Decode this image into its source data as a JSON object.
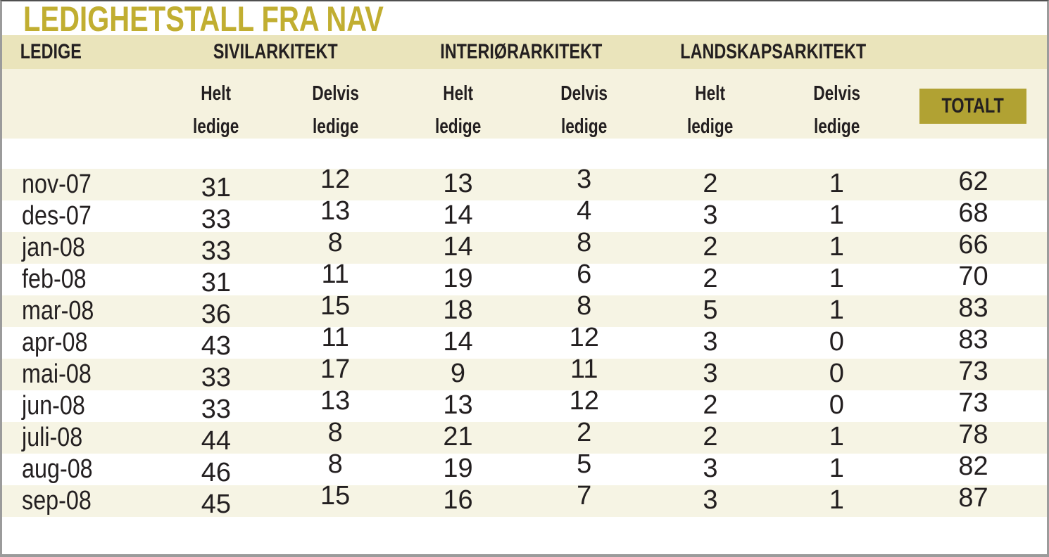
{
  "title": "LEDIGHETSTALL FRA NAV",
  "header": {
    "corner_label": "LEDIGE",
    "groups": [
      {
        "label": "SIVILARKITEKT"
      },
      {
        "label": "INTERIØRARKITEKT"
      },
      {
        "label": "LANDSKAPSARKITEKT"
      }
    ],
    "subcols": [
      {
        "line1": "Helt",
        "line2": "ledige"
      },
      {
        "line1": "Delvis",
        "line2": "ledige"
      },
      {
        "line1": "Helt",
        "line2": "ledige"
      },
      {
        "line1": "Delvis",
        "line2": "ledige"
      },
      {
        "line1": "Helt",
        "line2": "ledige"
      },
      {
        "line1": "Delvis",
        "line2": "ledige"
      }
    ],
    "total_label": "TOTALT"
  },
  "chart_data": {
    "type": "table",
    "title": "LEDIGHETSTALL FRA NAV",
    "column_groups": [
      "LEDIGE",
      "SIVILARKITEKT",
      "INTERIØRARKITEKT",
      "LANDSKAPSARKITEKT",
      "TOTALT"
    ],
    "columns": [
      "LEDIGE",
      "Helt ledige",
      "Delvis ledige",
      "Helt ledige",
      "Delvis ledige",
      "Helt ledige",
      "Delvis ledige",
      "TOTALT"
    ],
    "rows": [
      [
        "nov-07",
        31,
        12,
        13,
        3,
        2,
        1,
        62
      ],
      [
        "des-07",
        33,
        13,
        14,
        4,
        3,
        1,
        68
      ],
      [
        "jan-08",
        33,
        8,
        14,
        8,
        2,
        1,
        66
      ],
      [
        "feb-08",
        31,
        11,
        19,
        6,
        2,
        1,
        70
      ],
      [
        "mar-08",
        36,
        15,
        18,
        8,
        5,
        1,
        83
      ],
      [
        "apr-08",
        43,
        11,
        14,
        12,
        3,
        0,
        83
      ],
      [
        "mai-08",
        33,
        17,
        9,
        11,
        3,
        0,
        73
      ],
      [
        "jun-08",
        33,
        13,
        13,
        12,
        2,
        0,
        73
      ],
      [
        "juli-08",
        44,
        8,
        21,
        2,
        2,
        1,
        78
      ],
      [
        "aug-08",
        46,
        8,
        19,
        5,
        3,
        1,
        82
      ],
      [
        "sep-08",
        45,
        15,
        16,
        7,
        3,
        1,
        87
      ]
    ]
  },
  "colors": {
    "title_gold": "#c1ae31",
    "total_box_gold": "#b1a233",
    "group_band_beige": "#eae4bb",
    "sub_band_beige": "#f5f2df",
    "row_stripe_beige": "#f6f4e4",
    "text_dark": "#231f20",
    "frame_gray": "#9b9b9b"
  }
}
